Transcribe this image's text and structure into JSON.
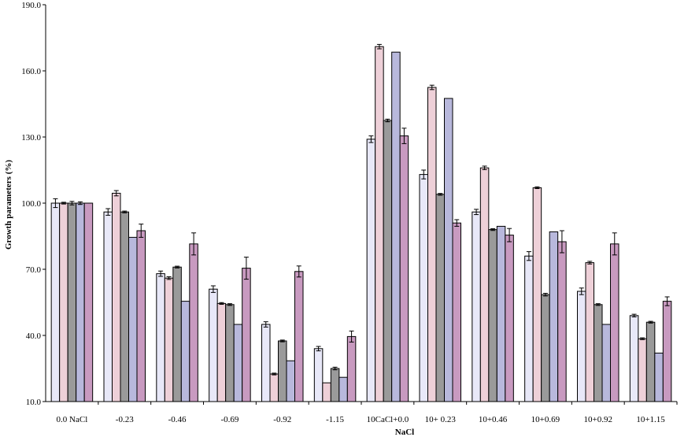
{
  "chart_data": {
    "type": "bar",
    "title": "",
    "xlabel": "NaCl",
    "ylabel": "Growth parameters (%)",
    "ylim": [
      10,
      190
    ],
    "yticks": [
      "10.0",
      "40.0",
      "70.0",
      "100.0",
      "130.0",
      "160.0",
      "190.0"
    ],
    "grid": false,
    "legend": "none",
    "categories": [
      "0.0 NaCl",
      "-0.23",
      "-0.46",
      "-0.69",
      "-0.92",
      "-1.15",
      "10CaCl+0.0",
      "10+ 0.23",
      "10+0.46",
      "10+0.69",
      "10+0.92",
      "10+1.15"
    ],
    "series": [
      {
        "color": "#e8e8f8",
        "values": [
          100,
          96,
          68,
          61,
          45,
          34,
          129,
          113,
          96,
          76,
          60,
          49
        ],
        "errors": [
          2,
          1.5,
          1.2,
          1.5,
          1.2,
          1,
          1.5,
          2,
          1.2,
          2,
          1.5,
          0.6
        ]
      },
      {
        "color": "#eed0d8",
        "values": [
          100,
          104.5,
          66,
          54.5,
          22.5,
          18.5,
          171,
          152.5,
          116,
          107,
          73,
          38.5
        ],
        "errors": [
          0.4,
          1.2,
          0.6,
          0.4,
          0.4,
          0,
          1,
          1,
          0.8,
          0.4,
          0.6,
          0.4
        ]
      },
      {
        "color": "#9a9a9a",
        "values": [
          100,
          96,
          71,
          54,
          37.5,
          25,
          137.5,
          104,
          88,
          58.5,
          54,
          46
        ],
        "errors": [
          0.8,
          0.4,
          0.4,
          0.4,
          0.4,
          0.6,
          0.6,
          0.4,
          0.4,
          0.6,
          0.4,
          0.4
        ]
      },
      {
        "color": "#b8b8dc",
        "values": [
          100,
          84.5,
          55.5,
          45,
          28.5,
          21,
          168.5,
          147.5,
          89.5,
          87,
          45,
          32
        ],
        "errors": [
          0.6,
          0,
          0,
          0,
          0,
          0,
          0,
          0,
          0,
          0,
          0,
          0
        ]
      },
      {
        "color": "#c89ac0",
        "values": [
          100,
          87.5,
          81.5,
          70.5,
          69,
          39.5,
          130.5,
          91,
          85.5,
          82.5,
          81.5,
          55.5
        ],
        "errors": [
          0,
          3,
          5,
          5,
          2.5,
          2.5,
          3.5,
          1.5,
          3,
          5,
          5,
          2
        ]
      }
    ]
  }
}
